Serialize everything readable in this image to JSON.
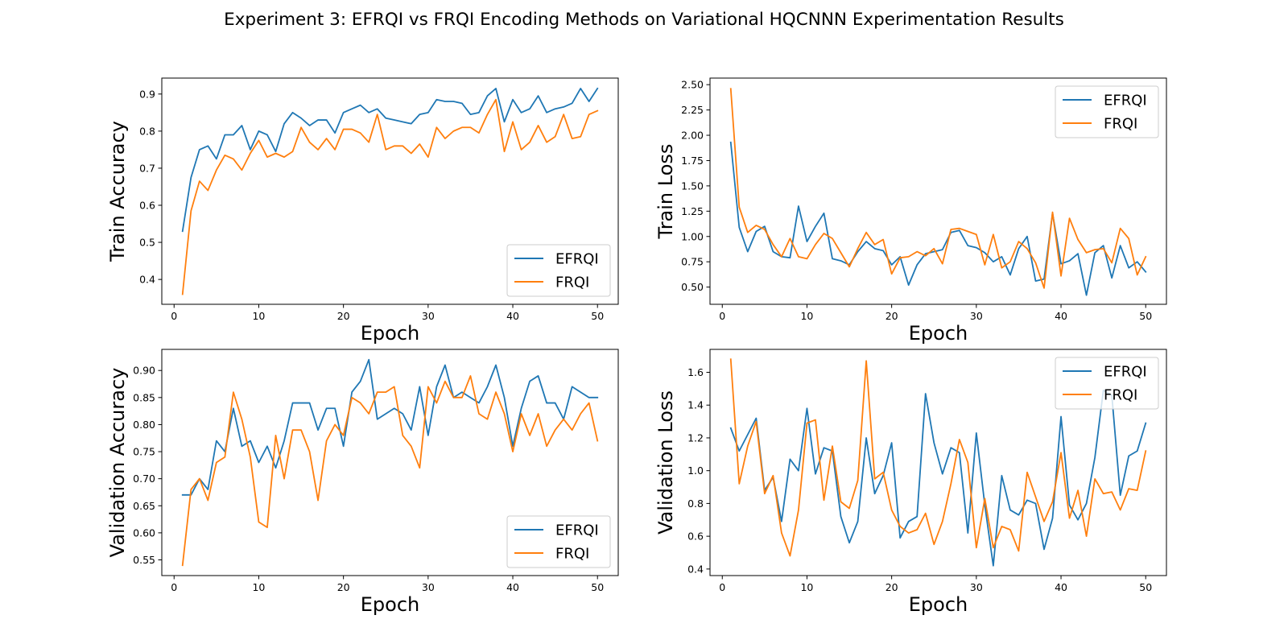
{
  "figure": {
    "title": "Experiment 3: EFRQI vs FRQI Encoding Methods on Variational HQCNNN Experimentation Results"
  },
  "colors": {
    "EFRQI": "#1f77b4",
    "FRQI": "#ff7f0e"
  },
  "chart_data": [
    {
      "type": "line",
      "xlabel": "Epoch",
      "ylabel": "Train Accuracy",
      "xlim": [
        -1.45,
        52.45
      ],
      "ylim": [
        0.333,
        0.943
      ],
      "xticks": [
        0,
        10,
        20,
        30,
        40,
        50
      ],
      "yticks": [
        0.4,
        0.5,
        0.6,
        0.7,
        0.8,
        0.9
      ],
      "ytick_format": 1,
      "legend": "lower-right",
      "x": [
        1,
        2,
        3,
        4,
        5,
        6,
        7,
        8,
        9,
        10,
        11,
        12,
        13,
        14,
        15,
        16,
        17,
        18,
        19,
        20,
        21,
        22,
        23,
        24,
        25,
        26,
        27,
        28,
        29,
        30,
        31,
        32,
        33,
        34,
        35,
        36,
        37,
        38,
        39,
        40,
        41,
        42,
        43,
        44,
        45,
        46,
        47,
        48,
        49,
        50
      ],
      "series": [
        {
          "name": "EFRQI",
          "values": [
            0.53,
            0.675,
            0.75,
            0.76,
            0.725,
            0.79,
            0.79,
            0.815,
            0.75,
            0.8,
            0.79,
            0.745,
            0.82,
            0.85,
            0.835,
            0.815,
            0.83,
            0.83,
            0.795,
            0.85,
            0.86,
            0.87,
            0.85,
            0.86,
            0.835,
            0.83,
            0.825,
            0.82,
            0.845,
            0.85,
            0.885,
            0.88,
            0.88,
            0.875,
            0.845,
            0.85,
            0.895,
            0.915,
            0.825,
            0.885,
            0.85,
            0.86,
            0.895,
            0.85,
            0.86,
            0.865,
            0.875,
            0.915,
            0.88,
            0.915
          ]
        },
        {
          "name": "FRQI",
          "values": [
            0.36,
            0.585,
            0.665,
            0.64,
            0.695,
            0.735,
            0.725,
            0.695,
            0.74,
            0.775,
            0.73,
            0.74,
            0.73,
            0.745,
            0.81,
            0.77,
            0.75,
            0.78,
            0.75,
            0.805,
            0.805,
            0.795,
            0.77,
            0.845,
            0.75,
            0.76,
            0.76,
            0.74,
            0.765,
            0.73,
            0.81,
            0.78,
            0.8,
            0.81,
            0.81,
            0.795,
            0.845,
            0.885,
            0.745,
            0.825,
            0.75,
            0.77,
            0.815,
            0.77,
            0.785,
            0.845,
            0.78,
            0.785,
            0.845,
            0.855
          ]
        }
      ]
    },
    {
      "type": "line",
      "xlabel": "Epoch",
      "ylabel": "Train Loss",
      "xlim": [
        -1.45,
        52.45
      ],
      "ylim": [
        0.33,
        2.565
      ],
      "xticks": [
        0,
        10,
        20,
        30,
        40,
        50
      ],
      "yticks": [
        0.5,
        0.75,
        1.0,
        1.25,
        1.5,
        1.75,
        2.0,
        2.25,
        2.5
      ],
      "ytick_format": 2,
      "legend": "upper-right",
      "x": [
        1,
        2,
        3,
        4,
        5,
        6,
        7,
        8,
        9,
        10,
        11,
        12,
        13,
        14,
        15,
        16,
        17,
        18,
        19,
        20,
        21,
        22,
        23,
        24,
        25,
        26,
        27,
        28,
        29,
        30,
        31,
        32,
        33,
        34,
        35,
        36,
        37,
        38,
        39,
        40,
        41,
        42,
        43,
        44,
        45,
        46,
        47,
        48,
        49,
        50
      ],
      "series": [
        {
          "name": "EFRQI",
          "values": [
            1.93,
            1.09,
            0.85,
            1.05,
            1.1,
            0.85,
            0.8,
            0.79,
            1.3,
            0.95,
            1.1,
            1.23,
            0.78,
            0.76,
            0.72,
            0.85,
            0.95,
            0.88,
            0.86,
            0.72,
            0.8,
            0.52,
            0.72,
            0.83,
            0.85,
            0.87,
            1.04,
            1.06,
            0.91,
            0.89,
            0.84,
            0.75,
            0.8,
            0.62,
            0.88,
            1.0,
            0.56,
            0.58,
            1.23,
            0.73,
            0.76,
            0.83,
            0.42,
            0.84,
            0.91,
            0.59,
            0.91,
            0.69,
            0.75,
            0.65
          ]
        },
        {
          "name": "FRQI",
          "values": [
            2.46,
            1.29,
            1.04,
            1.11,
            1.07,
            0.92,
            0.8,
            0.98,
            0.8,
            0.78,
            0.92,
            1.03,
            0.98,
            0.84,
            0.7,
            0.88,
            1.04,
            0.92,
            0.97,
            0.63,
            0.79,
            0.8,
            0.85,
            0.81,
            0.88,
            0.73,
            1.07,
            1.08,
            1.05,
            1.02,
            0.72,
            1.02,
            0.69,
            0.75,
            0.95,
            0.88,
            0.74,
            0.49,
            1.24,
            0.61,
            1.18,
            0.97,
            0.84,
            0.87,
            0.88,
            0.74,
            1.08,
            0.98,
            0.62,
            0.8
          ]
        }
      ]
    },
    {
      "type": "line",
      "xlabel": "Epoch",
      "ylabel": "Validation Accuracy",
      "xlim": [
        -1.45,
        52.45
      ],
      "ylim": [
        0.521,
        0.939
      ],
      "xticks": [
        0,
        10,
        20,
        30,
        40,
        50
      ],
      "yticks": [
        0.55,
        0.6,
        0.65,
        0.7,
        0.75,
        0.8,
        0.85,
        0.9
      ],
      "ytick_format": 2,
      "legend": "lower-right",
      "x": [
        1,
        2,
        3,
        4,
        5,
        6,
        7,
        8,
        9,
        10,
        11,
        12,
        13,
        14,
        15,
        16,
        17,
        18,
        19,
        20,
        21,
        22,
        23,
        24,
        25,
        26,
        27,
        28,
        29,
        30,
        31,
        32,
        33,
        34,
        35,
        36,
        37,
        38,
        39,
        40,
        41,
        42,
        43,
        44,
        45,
        46,
        47,
        48,
        49,
        50
      ],
      "series": [
        {
          "name": "EFRQI",
          "values": [
            0.67,
            0.67,
            0.7,
            0.68,
            0.77,
            0.75,
            0.83,
            0.76,
            0.77,
            0.73,
            0.76,
            0.72,
            0.77,
            0.84,
            0.84,
            0.84,
            0.79,
            0.83,
            0.83,
            0.76,
            0.86,
            0.88,
            0.92,
            0.81,
            0.82,
            0.83,
            0.82,
            0.79,
            0.87,
            0.78,
            0.87,
            0.91,
            0.85,
            0.86,
            0.85,
            0.84,
            0.87,
            0.91,
            0.85,
            0.76,
            0.83,
            0.88,
            0.89,
            0.84,
            0.84,
            0.81,
            0.87,
            0.86,
            0.85,
            0.85
          ]
        },
        {
          "name": "FRQI",
          "values": [
            0.54,
            0.68,
            0.7,
            0.66,
            0.73,
            0.74,
            0.86,
            0.81,
            0.74,
            0.62,
            0.61,
            0.78,
            0.7,
            0.79,
            0.79,
            0.75,
            0.66,
            0.77,
            0.8,
            0.78,
            0.85,
            0.84,
            0.82,
            0.86,
            0.86,
            0.87,
            0.78,
            0.76,
            0.72,
            0.87,
            0.84,
            0.88,
            0.85,
            0.85,
            0.89,
            0.82,
            0.81,
            0.86,
            0.82,
            0.75,
            0.82,
            0.78,
            0.82,
            0.76,
            0.79,
            0.81,
            0.79,
            0.82,
            0.84,
            0.77
          ]
        }
      ]
    },
    {
      "type": "line",
      "xlabel": "Epoch",
      "ylabel": "Validation Loss",
      "xlim": [
        -1.45,
        52.45
      ],
      "ylim": [
        0.36,
        1.74
      ],
      "xticks": [
        0,
        10,
        20,
        30,
        40,
        50
      ],
      "yticks": [
        0.4,
        0.6,
        0.8,
        1.0,
        1.2,
        1.4,
        1.6
      ],
      "ytick_format": 1,
      "legend": "upper-right",
      "x": [
        1,
        2,
        3,
        4,
        5,
        6,
        7,
        8,
        9,
        10,
        11,
        12,
        13,
        14,
        15,
        16,
        17,
        18,
        19,
        20,
        21,
        22,
        23,
        24,
        25,
        26,
        27,
        28,
        29,
        30,
        31,
        32,
        33,
        34,
        35,
        36,
        37,
        38,
        39,
        40,
        41,
        42,
        43,
        44,
        45,
        46,
        47,
        48,
        49,
        50
      ],
      "series": [
        {
          "name": "EFRQI",
          "values": [
            1.26,
            1.12,
            1.22,
            1.32,
            0.88,
            0.96,
            0.69,
            1.07,
            1.0,
            1.38,
            0.98,
            1.14,
            1.12,
            0.72,
            0.56,
            0.69,
            1.2,
            0.86,
            0.97,
            1.17,
            0.59,
            0.69,
            0.72,
            1.47,
            1.17,
            0.98,
            1.14,
            1.11,
            0.62,
            1.23,
            0.79,
            0.42,
            0.97,
            0.76,
            0.73,
            0.82,
            0.8,
            0.52,
            0.71,
            1.33,
            0.79,
            0.7,
            0.8,
            1.08,
            1.49,
            1.46,
            0.85,
            1.09,
            1.12,
            1.29
          ]
        },
        {
          "name": "FRQI",
          "values": [
            1.68,
            0.92,
            1.15,
            1.3,
            0.86,
            0.97,
            0.62,
            0.48,
            0.76,
            1.29,
            1.31,
            0.82,
            1.15,
            0.81,
            0.77,
            0.94,
            1.67,
            0.95,
            0.99,
            0.76,
            0.66,
            0.62,
            0.64,
            0.74,
            0.55,
            0.69,
            0.92,
            1.19,
            1.05,
            0.53,
            0.83,
            0.53,
            0.66,
            0.64,
            0.51,
            0.99,
            0.84,
            0.69,
            0.81,
            1.11,
            0.71,
            0.88,
            0.6,
            0.95,
            0.86,
            0.87,
            0.76,
            0.89,
            0.88,
            1.12
          ]
        }
      ]
    }
  ]
}
